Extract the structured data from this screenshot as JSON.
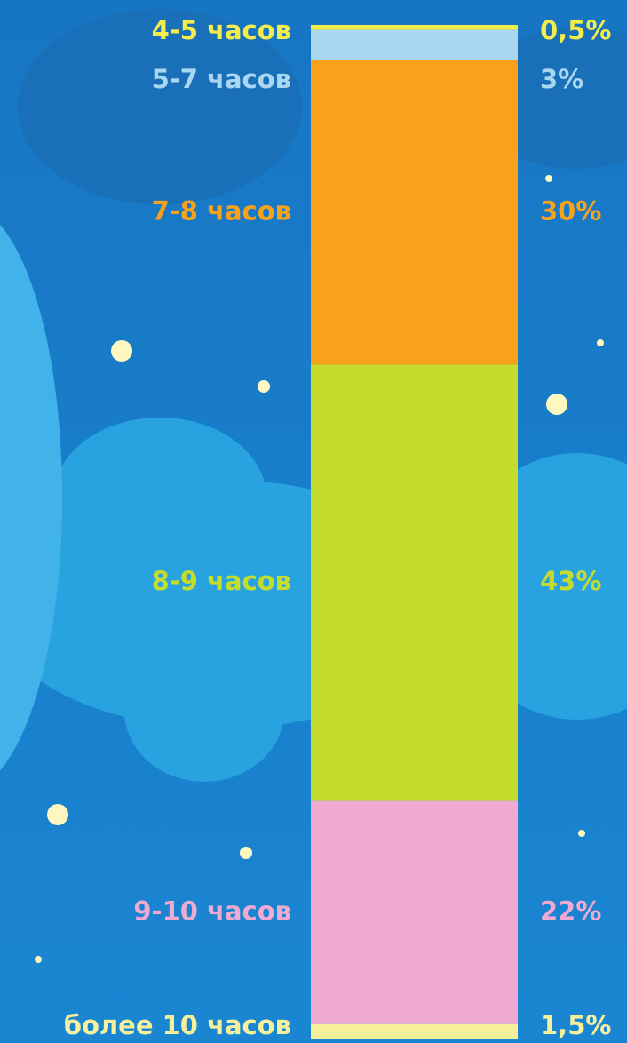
{
  "chart_data": {
    "type": "stacked_bar",
    "categories": [
      "4-5 часов",
      "5-7 часов",
      "7-8 часов",
      "8-9 часов",
      "9-10 часов",
      "более 10 часов"
    ],
    "values": [
      0.5,
      3,
      30,
      43,
      22,
      1.5
    ],
    "value_labels": [
      "0,5%",
      "3%",
      "30%",
      "43%",
      "22%",
      "1,5%"
    ],
    "colors": [
      "#f4ec4a",
      "#a9d6f0",
      "#f8a21c",
      "#c6dc2c",
      "#eeaad0",
      "#f6f09a"
    ],
    "ylim": [
      0,
      100
    ]
  }
}
